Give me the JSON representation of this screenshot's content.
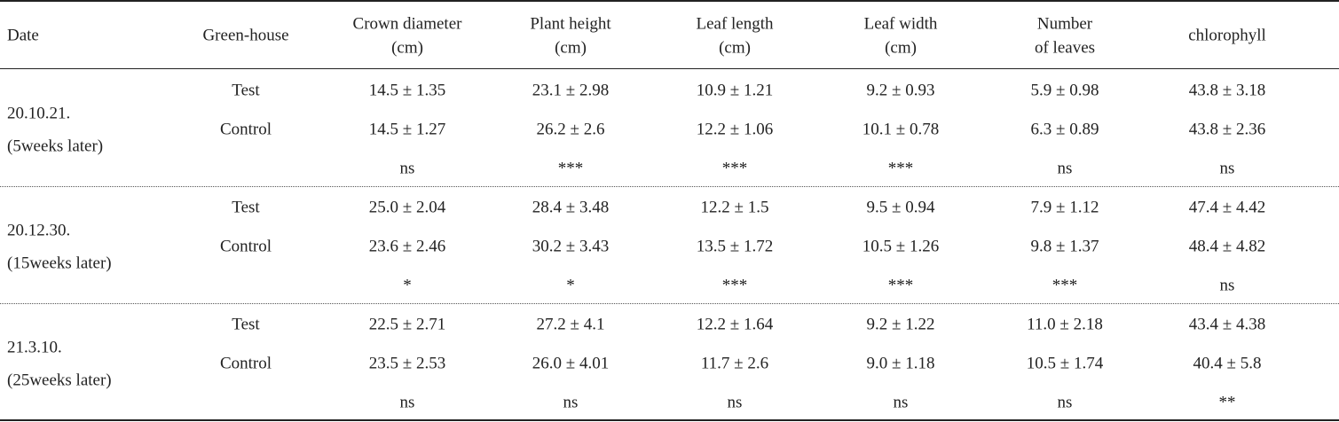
{
  "table": {
    "header": [
      [
        "Date"
      ],
      [
        "Green-house"
      ],
      [
        "Crown diameter",
        "(cm)"
      ],
      [
        "Plant height",
        "(cm)"
      ],
      [
        "Leaf length",
        "(cm)"
      ],
      [
        "Leaf width",
        "(cm)"
      ],
      [
        "Number",
        "of leaves"
      ],
      [
        "chlorophyll"
      ]
    ],
    "groups": [
      {
        "date": [
          "20.10.21.",
          "(5weeks later)"
        ],
        "rows": [
          [
            "Test",
            "14.5 ± 1.35",
            "23.1 ± 2.98",
            "10.9 ± 1.21",
            "9.2 ± 0.93",
            "5.9 ± 0.98",
            "43.8 ± 3.18"
          ],
          [
            "Control",
            "14.5 ± 1.27",
            "26.2 ± 2.6",
            "12.2 ± 1.06",
            "10.1 ± 0.78",
            "6.3 ± 0.89",
            "43.8 ± 2.36"
          ]
        ],
        "significance": [
          "ns",
          "***",
          "***",
          "***",
          "ns",
          "ns"
        ]
      },
      {
        "date": [
          "20.12.30.",
          "(15weeks later)"
        ],
        "rows": [
          [
            "Test",
            "25.0 ± 2.04",
            "28.4 ± 3.48",
            "12.2 ± 1.5",
            "9.5 ± 0.94",
            "7.9 ± 1.12",
            "47.4 ± 4.42"
          ],
          [
            "Control",
            "23.6 ± 2.46",
            "30.2 ± 3.43",
            "13.5 ± 1.72",
            "10.5 ± 1.26",
            "9.8 ± 1.37",
            "48.4 ± 4.82"
          ]
        ],
        "significance": [
          "*",
          "*",
          "***",
          "***",
          "***",
          "ns"
        ]
      },
      {
        "date": [
          "21.3.10.",
          "(25weeks later)"
        ],
        "rows": [
          [
            "Test",
            "22.5 ± 2.71",
            "27.2 ± 4.1",
            "12.2 ± 1.64",
            "9.2 ± 1.22",
            "11.0 ± 2.18",
            "43.4 ± 4.38"
          ],
          [
            "Control",
            "23.5 ± 2.53",
            "26.0 ± 4.01",
            "11.7 ± 2.6",
            "9.0 ± 1.18",
            "10.5 ± 1.74",
            "40.4 ± 5.8"
          ]
        ],
        "significance": [
          "ns",
          "ns",
          "ns",
          "ns",
          "ns",
          "**"
        ]
      }
    ]
  }
}
